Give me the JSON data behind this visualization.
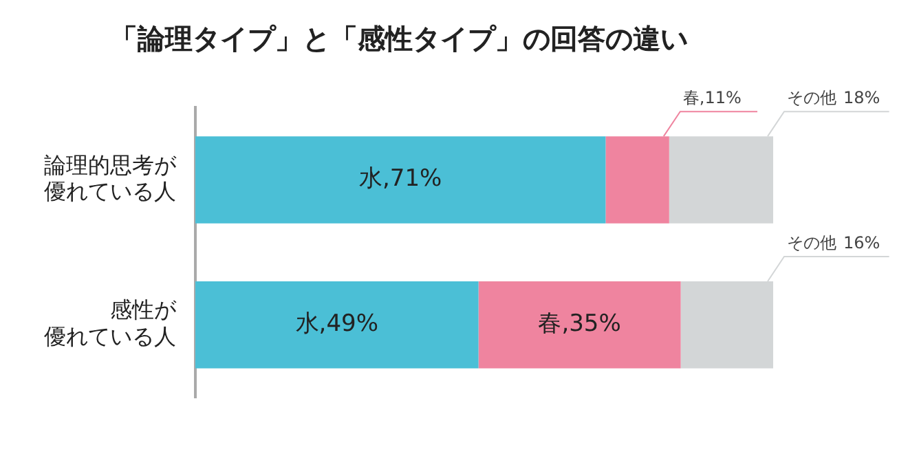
{
  "chart_data": {
    "type": "bar",
    "orientation": "horizontal",
    "stacked": true,
    "title": "「論理タイプ」と「感性タイプ」の回答の違い",
    "categories": [
      "論理的思考が優れている人",
      "感性が優れている人"
    ],
    "series": [
      {
        "name": "水",
        "color": "#4bbfd6",
        "values": [
          71,
          49
        ],
        "value_labels": [
          ",71%",
          ",49%"
        ]
      },
      {
        "name": "春",
        "color": "#ef849f",
        "values": [
          11,
          35
        ],
        "value_labels": [
          ",11%",
          ",35%"
        ]
      },
      {
        "name": "その他",
        "color": "#d3d6d7",
        "values": [
          18,
          16
        ],
        "value_labels": [
          "18%",
          "16%"
        ]
      }
    ],
    "grid": false,
    "legend": false
  }
}
